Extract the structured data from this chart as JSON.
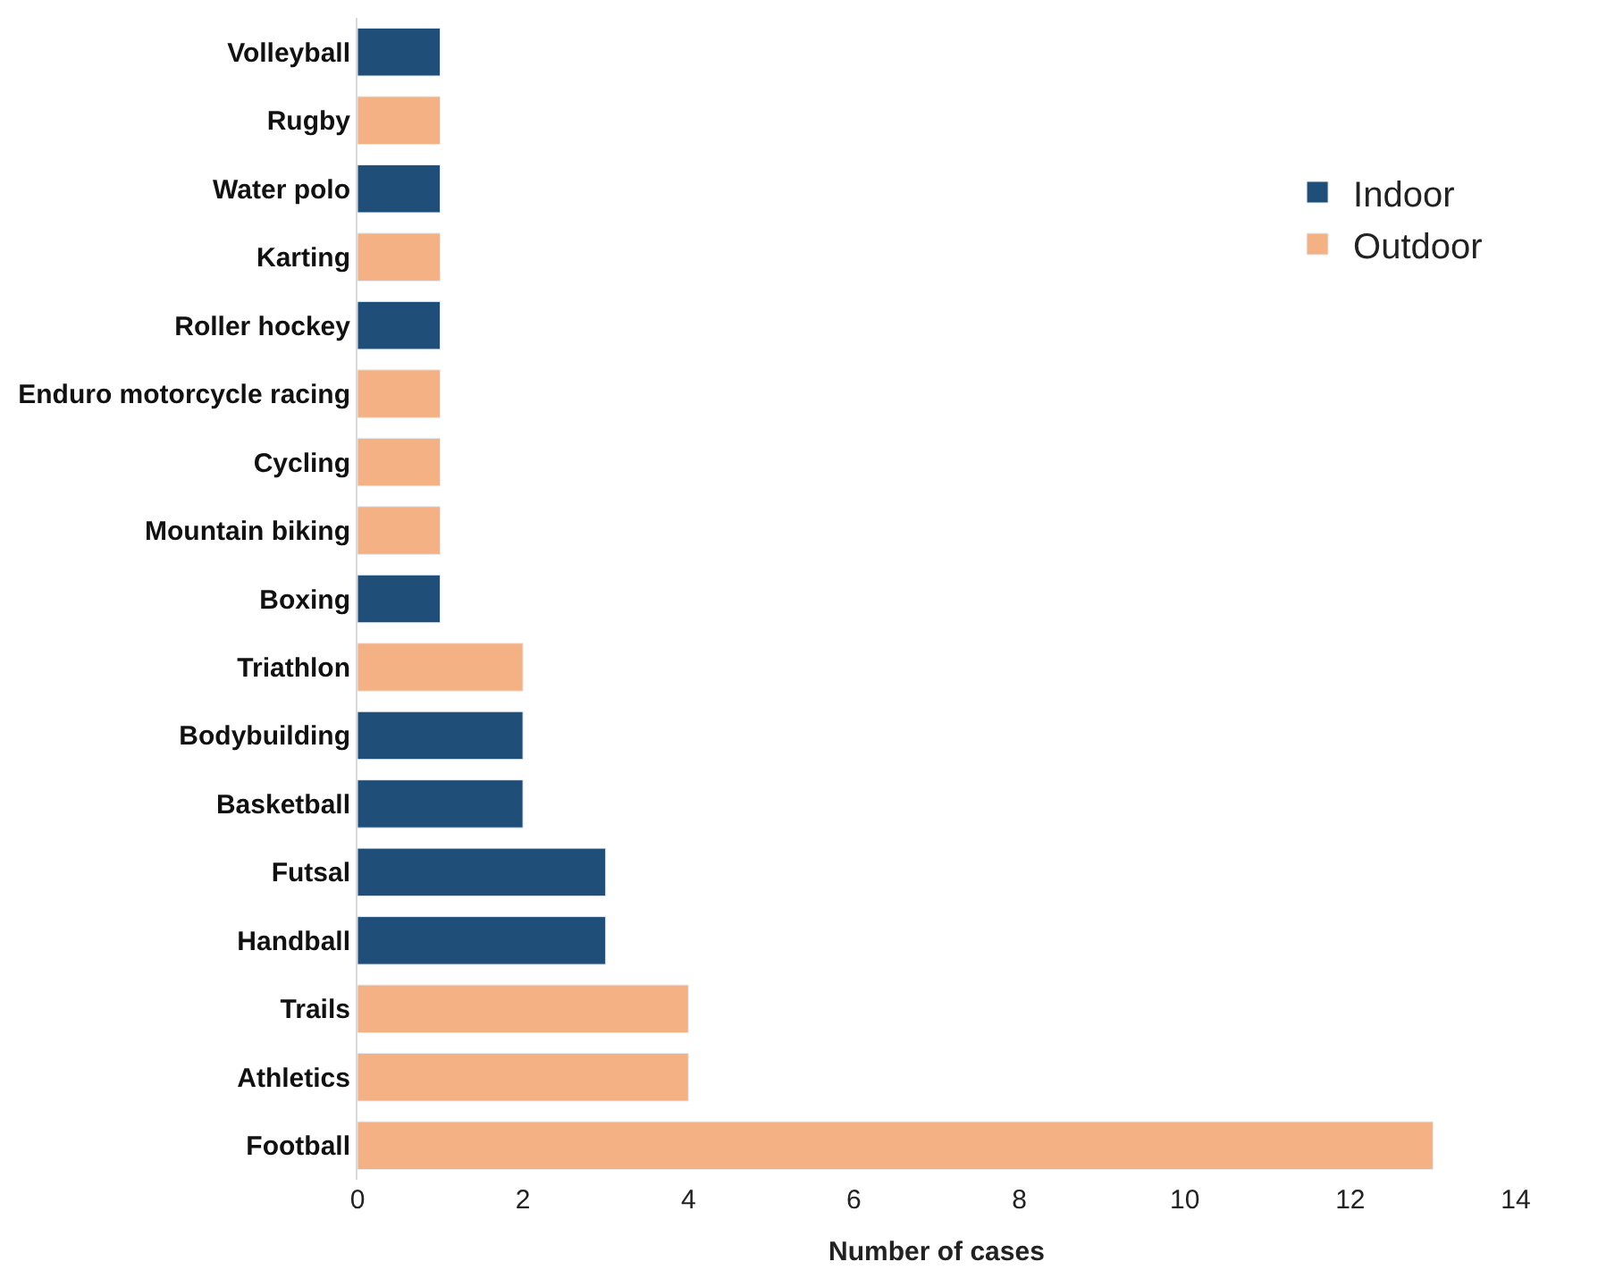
{
  "chart_data": {
    "type": "bar",
    "orientation": "horizontal",
    "xlabel": "Number of cases",
    "categories": [
      "Volleyball",
      "Rugby",
      "Water polo",
      "Karting",
      "Roller hockey",
      "Enduro motorcycle racing",
      "Cycling",
      "Mountain biking",
      "Boxing",
      "Triathlon",
      "Bodybuilding",
      "Basketball",
      "Futsal",
      "Handball",
      "Trails",
      "Athletics",
      "Football"
    ],
    "series": [
      {
        "name": "Indoor",
        "color": "#1f4e79",
        "values": [
          1,
          null,
          1,
          null,
          1,
          null,
          null,
          null,
          1,
          null,
          2,
          2,
          3,
          3,
          null,
          null,
          null
        ]
      },
      {
        "name": "Outdoor",
        "color": "#f4b183",
        "values": [
          null,
          1,
          null,
          1,
          null,
          1,
          1,
          1,
          null,
          2,
          null,
          null,
          null,
          null,
          4,
          4,
          13
        ]
      }
    ],
    "xlim": [
      0,
      14
    ],
    "xticks": [
      0,
      2,
      4,
      6,
      8,
      10,
      12,
      14
    ],
    "legend": "top right"
  }
}
